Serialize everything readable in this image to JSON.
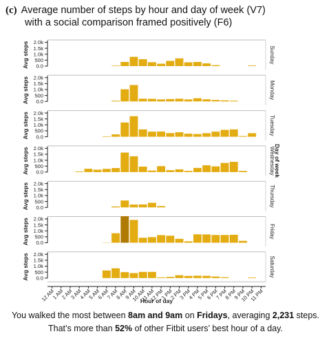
{
  "figure_label": "(c)",
  "title_line1": "Average number of steps by hour and day of week (V7)",
  "title_line2": "with a social comparison framed positively (F6)",
  "caption": {
    "l1_a": "You walked the most between ",
    "l1_b": "8am and 9am",
    "l1_c": " on ",
    "l1_d": "Fridays",
    "l1_e": ", averaging ",
    "l1_f": "2,231",
    "l1_g": " steps.",
    "l2_a": "That’s more than ",
    "l2_b": "52%",
    "l2_c": " of other Fitbit users’ best hour of a day."
  },
  "colors": {
    "bar": "#e3ac12",
    "highlight": "#b07b05",
    "axis": "#222222"
  },
  "chart_data": {
    "type": "bar",
    "xlabel": "Hour of day",
    "ylabel": "Avg steps",
    "facet_label": "Day of week",
    "ylim": [
      0,
      2200
    ],
    "yticks": [
      "0.0",
      "500",
      "1.0k",
      "1.5k",
      "2.0k"
    ],
    "categories": [
      "12 AM",
      "1 AM",
      "2 AM",
      "3 AM",
      "4 AM",
      "5 AM",
      "6 AM",
      "7 AM",
      "8 AM",
      "9 AM",
      "10 AM",
      "11 AM",
      "12 PM",
      "1 PM",
      "2 PM",
      "3 PM",
      "4 PM",
      "5 PM",
      "6 PM",
      "7 PM",
      "8 PM",
      "9 PM",
      "10 PM",
      "11 PM"
    ],
    "highlight": {
      "panel": "Friday",
      "hour": "8 AM"
    },
    "panels": [
      {
        "name": "Sunday",
        "values": [
          0,
          0,
          0,
          0,
          0,
          0,
          0,
          40,
          350,
          780,
          580,
          330,
          200,
          440,
          650,
          320,
          350,
          230,
          80,
          0,
          0,
          0,
          50,
          0
        ]
      },
      {
        "name": "Monday",
        "values": [
          0,
          0,
          0,
          0,
          0,
          0,
          0,
          60,
          1020,
          1380,
          230,
          220,
          170,
          200,
          230,
          170,
          270,
          180,
          120,
          90,
          60,
          0,
          0,
          0
        ]
      },
      {
        "name": "Tuesday",
        "values": [
          0,
          0,
          0,
          0,
          0,
          0,
          40,
          200,
          1200,
          1730,
          620,
          430,
          440,
          310,
          380,
          260,
          230,
          300,
          430,
          580,
          620,
          60,
          300,
          0
        ]
      },
      {
        "name": "Wednesday",
        "values": [
          0,
          0,
          0,
          50,
          280,
          200,
          270,
          340,
          1640,
          1330,
          460,
          130,
          500,
          160,
          230,
          100,
          350,
          570,
          480,
          770,
          860,
          100,
          0,
          0
        ]
      },
      {
        "name": "Thursday",
        "values": [
          0,
          0,
          0,
          0,
          0,
          0,
          0,
          80,
          580,
          240,
          250,
          390,
          110,
          0,
          0,
          0,
          0,
          0,
          0,
          0,
          0,
          0,
          0,
          0
        ]
      },
      {
        "name": "Friday",
        "values": [
          0,
          0,
          0,
          0,
          0,
          0,
          20,
          800,
          2231,
          1920,
          420,
          470,
          640,
          590,
          330,
          120,
          710,
          700,
          650,
          650,
          670,
          160,
          0,
          0
        ]
      },
      {
        "name": "Saturday",
        "values": [
          0,
          0,
          0,
          0,
          0,
          0,
          640,
          820,
          500,
          420,
          520,
          520,
          60,
          100,
          240,
          180,
          200,
          190,
          130,
          70,
          0,
          0,
          50,
          0
        ]
      }
    ]
  }
}
